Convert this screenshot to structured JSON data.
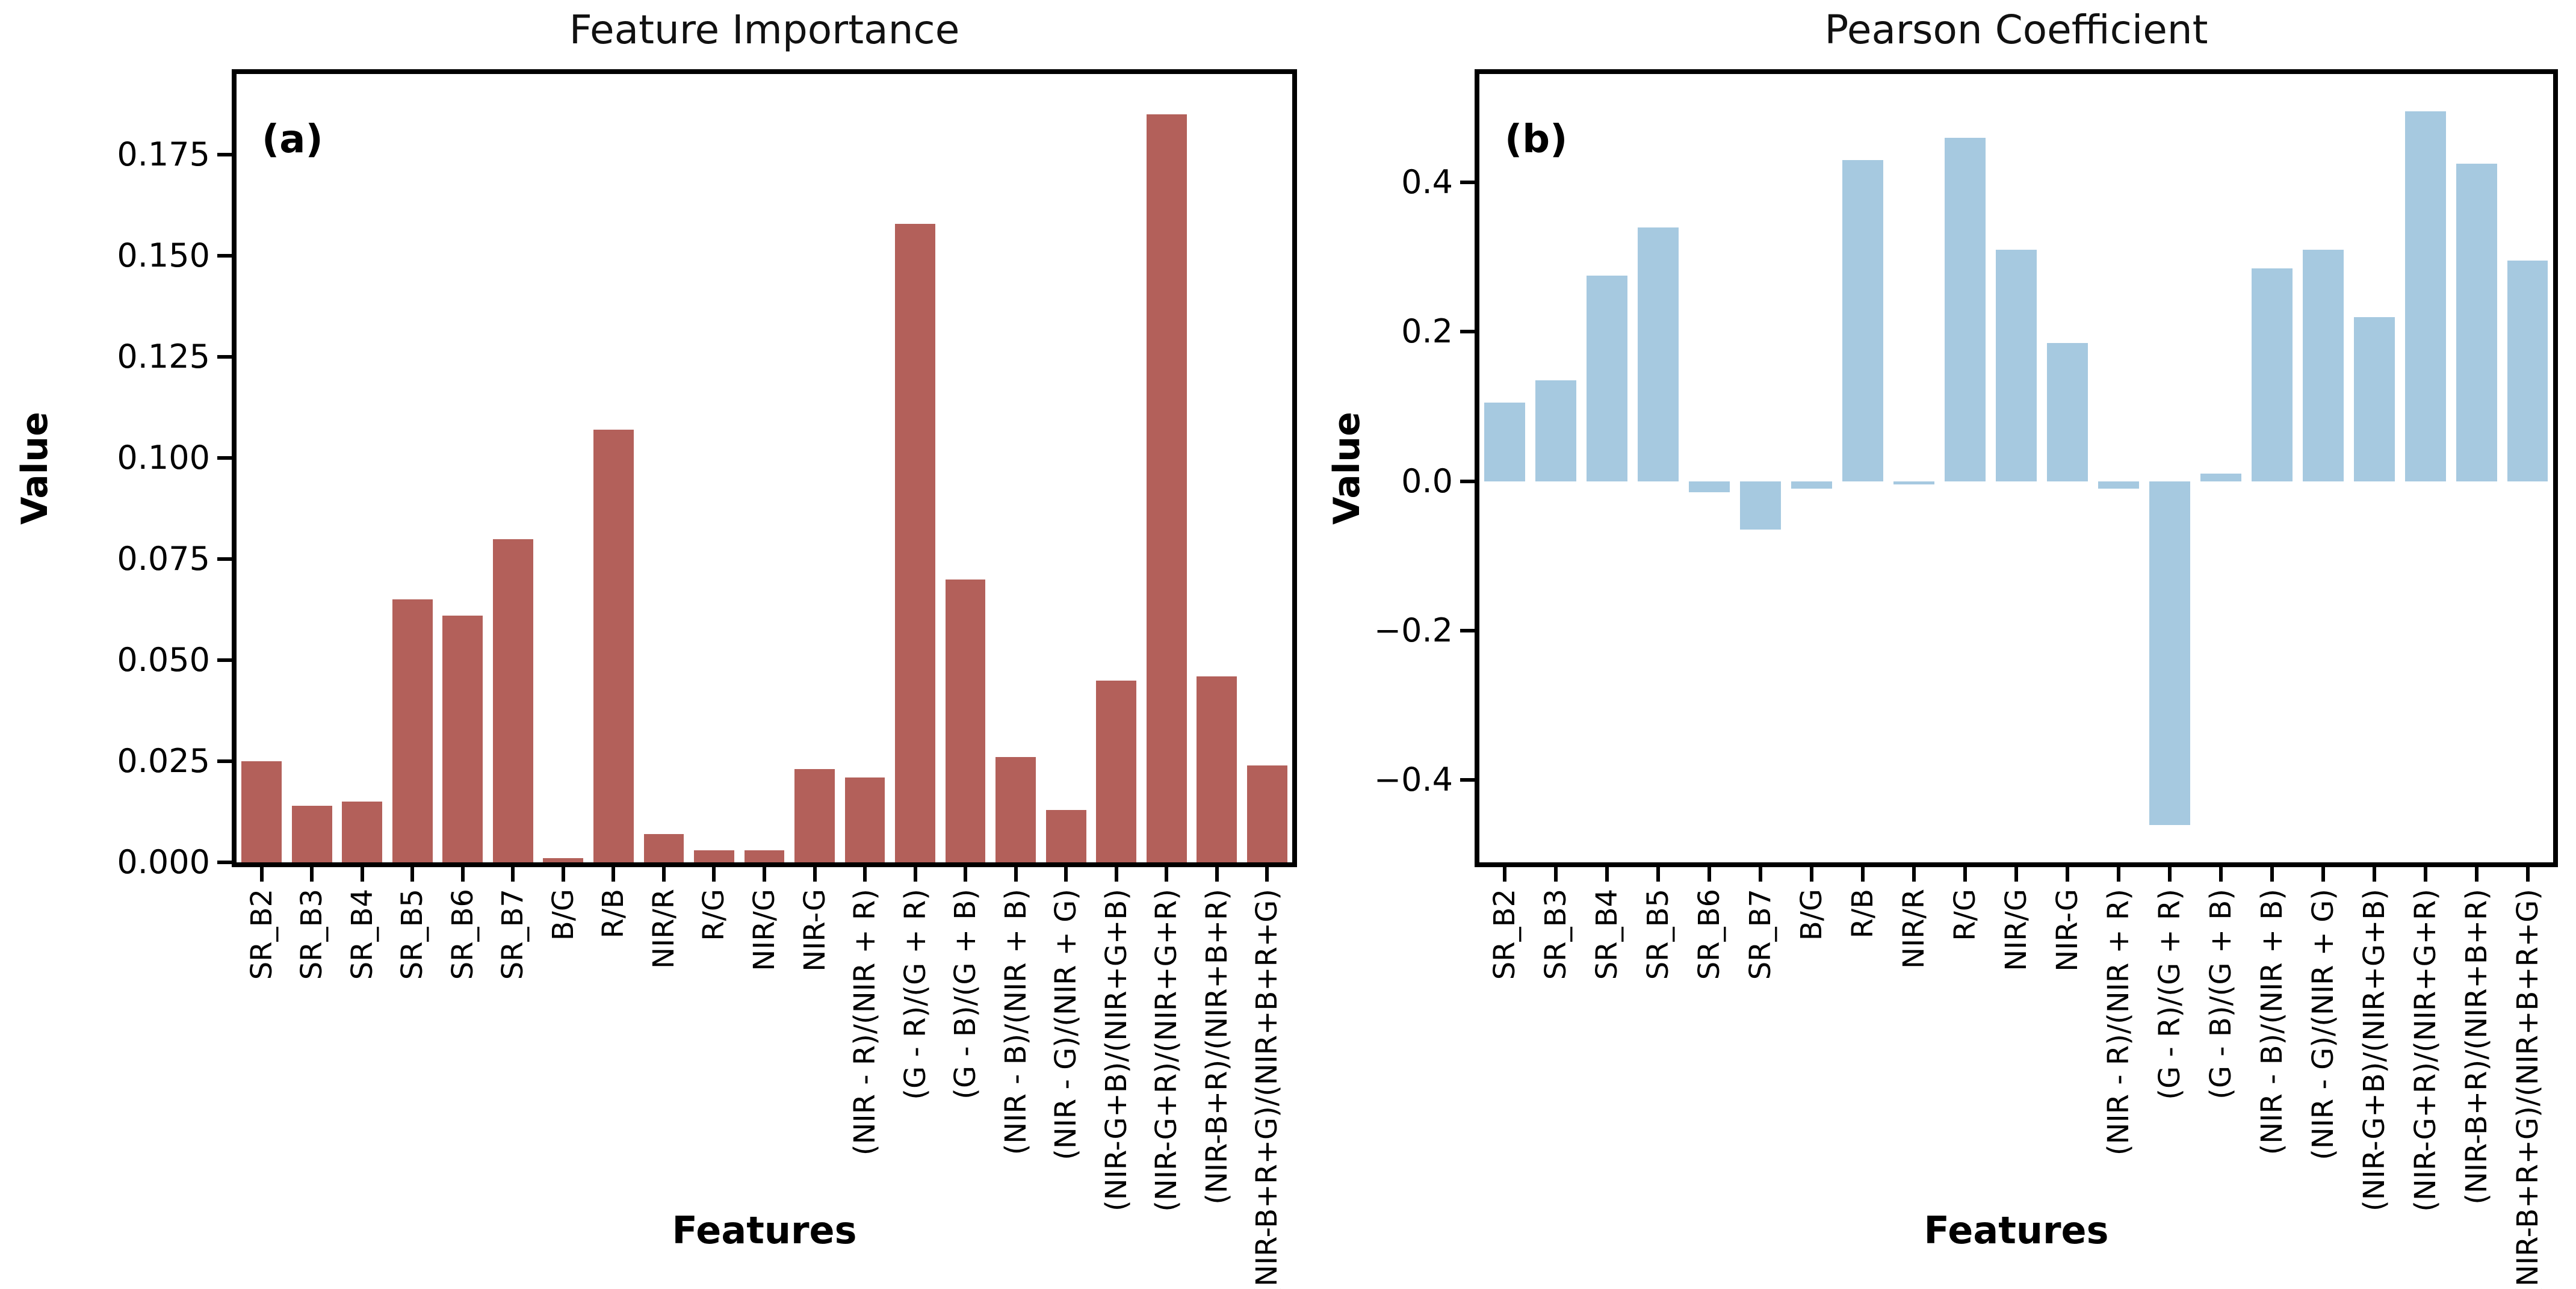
{
  "figure": {
    "background": "#ffffff",
    "text_color": "#000000",
    "axis_color": "#000000"
  },
  "chart_data": [
    {
      "type": "bar",
      "panel_label": "(a)",
      "title": "Feature Importance",
      "xlabel": "Features",
      "ylabel": "Value",
      "bar_color": "#b3605a",
      "legend": "none",
      "grid": false,
      "ylim": [
        0,
        0.195
      ],
      "yticks": [
        {
          "value": 0.0,
          "label": "0.000"
        },
        {
          "value": 0.025,
          "label": "0.025"
        },
        {
          "value": 0.05,
          "label": "0.050"
        },
        {
          "value": 0.075,
          "label": "0.075"
        },
        {
          "value": 0.1,
          "label": "0.100"
        },
        {
          "value": 0.125,
          "label": "0.125"
        },
        {
          "value": 0.15,
          "label": "0.150"
        },
        {
          "value": 0.175,
          "label": "0.175"
        }
      ],
      "categories": [
        "SR_B2",
        "SR_B3",
        "SR_B4",
        "SR_B5",
        "SR_B6",
        "SR_B7",
        "B/G",
        "R/B",
        "NIR/R",
        "R/G",
        "NIR/G",
        "NIR-G",
        "(NIR - R)/(NIR + R)",
        "(G - R)/(G + R)",
        "(G - B)/(G + B)",
        "(NIR - B)/(NIR + B)",
        "(NIR - G)/(NIR + G)",
        "(NIR-G+B)/(NIR+G+B)",
        "(NIR-G+R)/(NIR+G+R)",
        "(NIR-B+R)/(NIR+B+R)",
        "(NIR-B+R+G)/(NIR+B+R+G)"
      ],
      "values": [
        0.025,
        0.014,
        0.015,
        0.065,
        0.061,
        0.08,
        0.001,
        0.107,
        0.007,
        0.003,
        0.003,
        0.023,
        0.021,
        0.158,
        0.07,
        0.026,
        0.013,
        0.045,
        0.185,
        0.046,
        0.024
      ]
    },
    {
      "type": "bar",
      "panel_label": "(b)",
      "title": "Pearson Coefficient",
      "xlabel": "Features",
      "ylabel": "Value",
      "bar_color": "#a6c9e0",
      "legend": "none",
      "grid": false,
      "ylim": [
        -0.51,
        0.545
      ],
      "yticks": [
        {
          "value": 0.4,
          "label": "0.4"
        },
        {
          "value": 0.2,
          "label": "0.2"
        },
        {
          "value": 0.0,
          "label": "0.0"
        },
        {
          "value": -0.2,
          "label": "−0.2"
        },
        {
          "value": -0.4,
          "label": "−0.4"
        }
      ],
      "categories": [
        "SR_B2",
        "SR_B3",
        "SR_B4",
        "SR_B5",
        "SR_B6",
        "SR_B7",
        "B/G",
        "R/B",
        "NIR/R",
        "R/G",
        "NIR/G",
        "NIR-G",
        "(NIR - R)/(NIR + R)",
        "(G - R)/(G + R)",
        "(G - B)/(G + B)",
        "(NIR - B)/(NIR + B)",
        "(NIR - G)/(NIR + G)",
        "(NIR-G+B)/(NIR+G+B)",
        "(NIR-G+R)/(NIR+G+R)",
        "(NIR-B+R)/(NIR+B+R)",
        "(NIR-B+R+G)/(NIR+B+R+G)"
      ],
      "values": [
        0.105,
        0.135,
        0.275,
        0.34,
        -0.015,
        -0.065,
        -0.01,
        0.43,
        -0.004,
        0.46,
        0.31,
        0.185,
        -0.01,
        -0.46,
        0.01,
        0.285,
        0.31,
        0.22,
        0.495,
        0.425,
        0.295
      ]
    }
  ]
}
